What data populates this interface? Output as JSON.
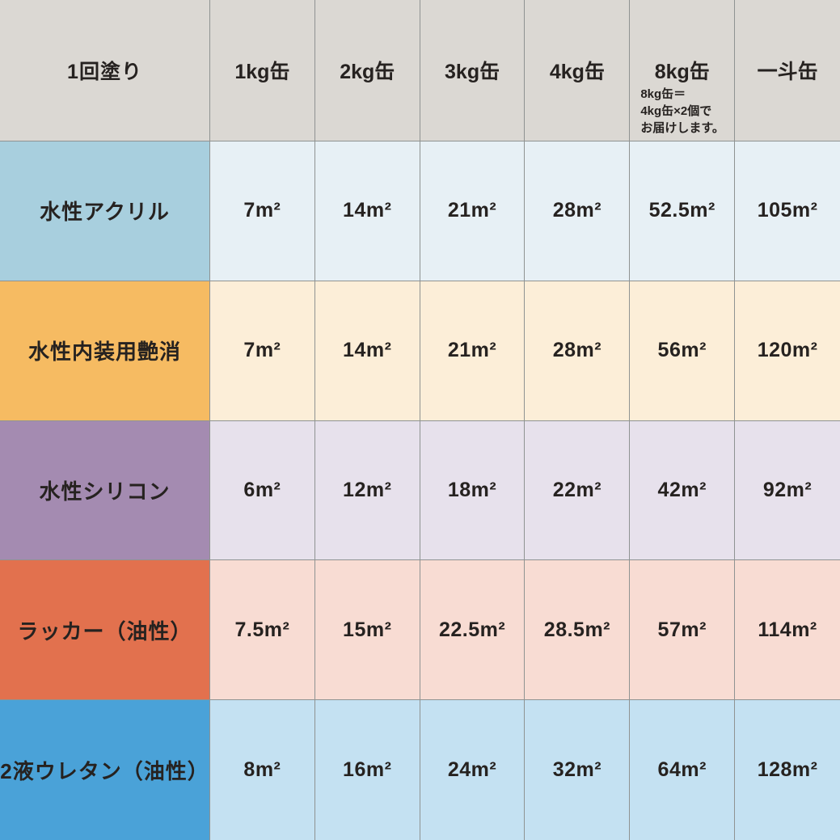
{
  "header": {
    "corner": "1回塗り",
    "columns": [
      "1kg缶",
      "2kg缶",
      "3kg缶",
      "4kg缶",
      "8kg缶",
      "一斗缶"
    ],
    "note": "8kg缶＝\n4kg缶×2個で\nお届けします。"
  },
  "rows": [
    {
      "label": "水性アクリル",
      "values": [
        "7m²",
        "14m²",
        "21m²",
        "28m²",
        "52.5m²",
        "105m²"
      ],
      "label_bg": "#a8cfde",
      "cell_bg": "#e7f0f5"
    },
    {
      "label": "水性内装用艶消",
      "values": [
        "7m²",
        "14m²",
        "21m²",
        "28m²",
        "56m²",
        "120m²"
      ],
      "label_bg": "#f6bb62",
      "cell_bg": "#fceed8"
    },
    {
      "label": "水性シリコン",
      "values": [
        "6m²",
        "12m²",
        "18m²",
        "22m²",
        "42m²",
        "92m²"
      ],
      "label_bg": "#a48bb1",
      "cell_bg": "#e7e1ec"
    },
    {
      "label": "ラッカー（油性）",
      "values": [
        "7.5m²",
        "15m²",
        "22.5m²",
        "28.5m²",
        "57m²",
        "114m²"
      ],
      "label_bg": "#e2714e",
      "cell_bg": "#f8dcd3"
    },
    {
      "label": "2液ウレタン（油性）",
      "values": [
        "8m²",
        "16m²",
        "24m²",
        "32m²",
        "64m²",
        "128m²"
      ],
      "label_bg": "#4aa2d8",
      "cell_bg": "#c4e1f2"
    }
  ],
  "colors": {
    "header_bg": "#dbd8d3",
    "grid_line": "#8f9392",
    "text": "#262220"
  },
  "chart_data": {
    "type": "table",
    "title": "1回塗り",
    "columns": [
      "1kg缶",
      "2kg缶",
      "3kg缶",
      "4kg缶",
      "8kg缶",
      "一斗缶"
    ],
    "unit": "m²",
    "series": [
      {
        "name": "水性アクリル",
        "values": [
          7,
          14,
          21,
          28,
          52.5,
          105
        ]
      },
      {
        "name": "水性内装用艶消",
        "values": [
          7,
          14,
          21,
          28,
          56,
          120
        ]
      },
      {
        "name": "水性シリコン",
        "values": [
          6,
          12,
          18,
          22,
          42,
          92
        ]
      },
      {
        "name": "ラッカー（油性）",
        "values": [
          7.5,
          15,
          22.5,
          28.5,
          57,
          114
        ]
      },
      {
        "name": "2液ウレタン（油性）",
        "values": [
          8,
          16,
          24,
          32,
          64,
          128
        ]
      }
    ],
    "note": "8kg缶＝4kg缶×2個でお届けします。"
  }
}
